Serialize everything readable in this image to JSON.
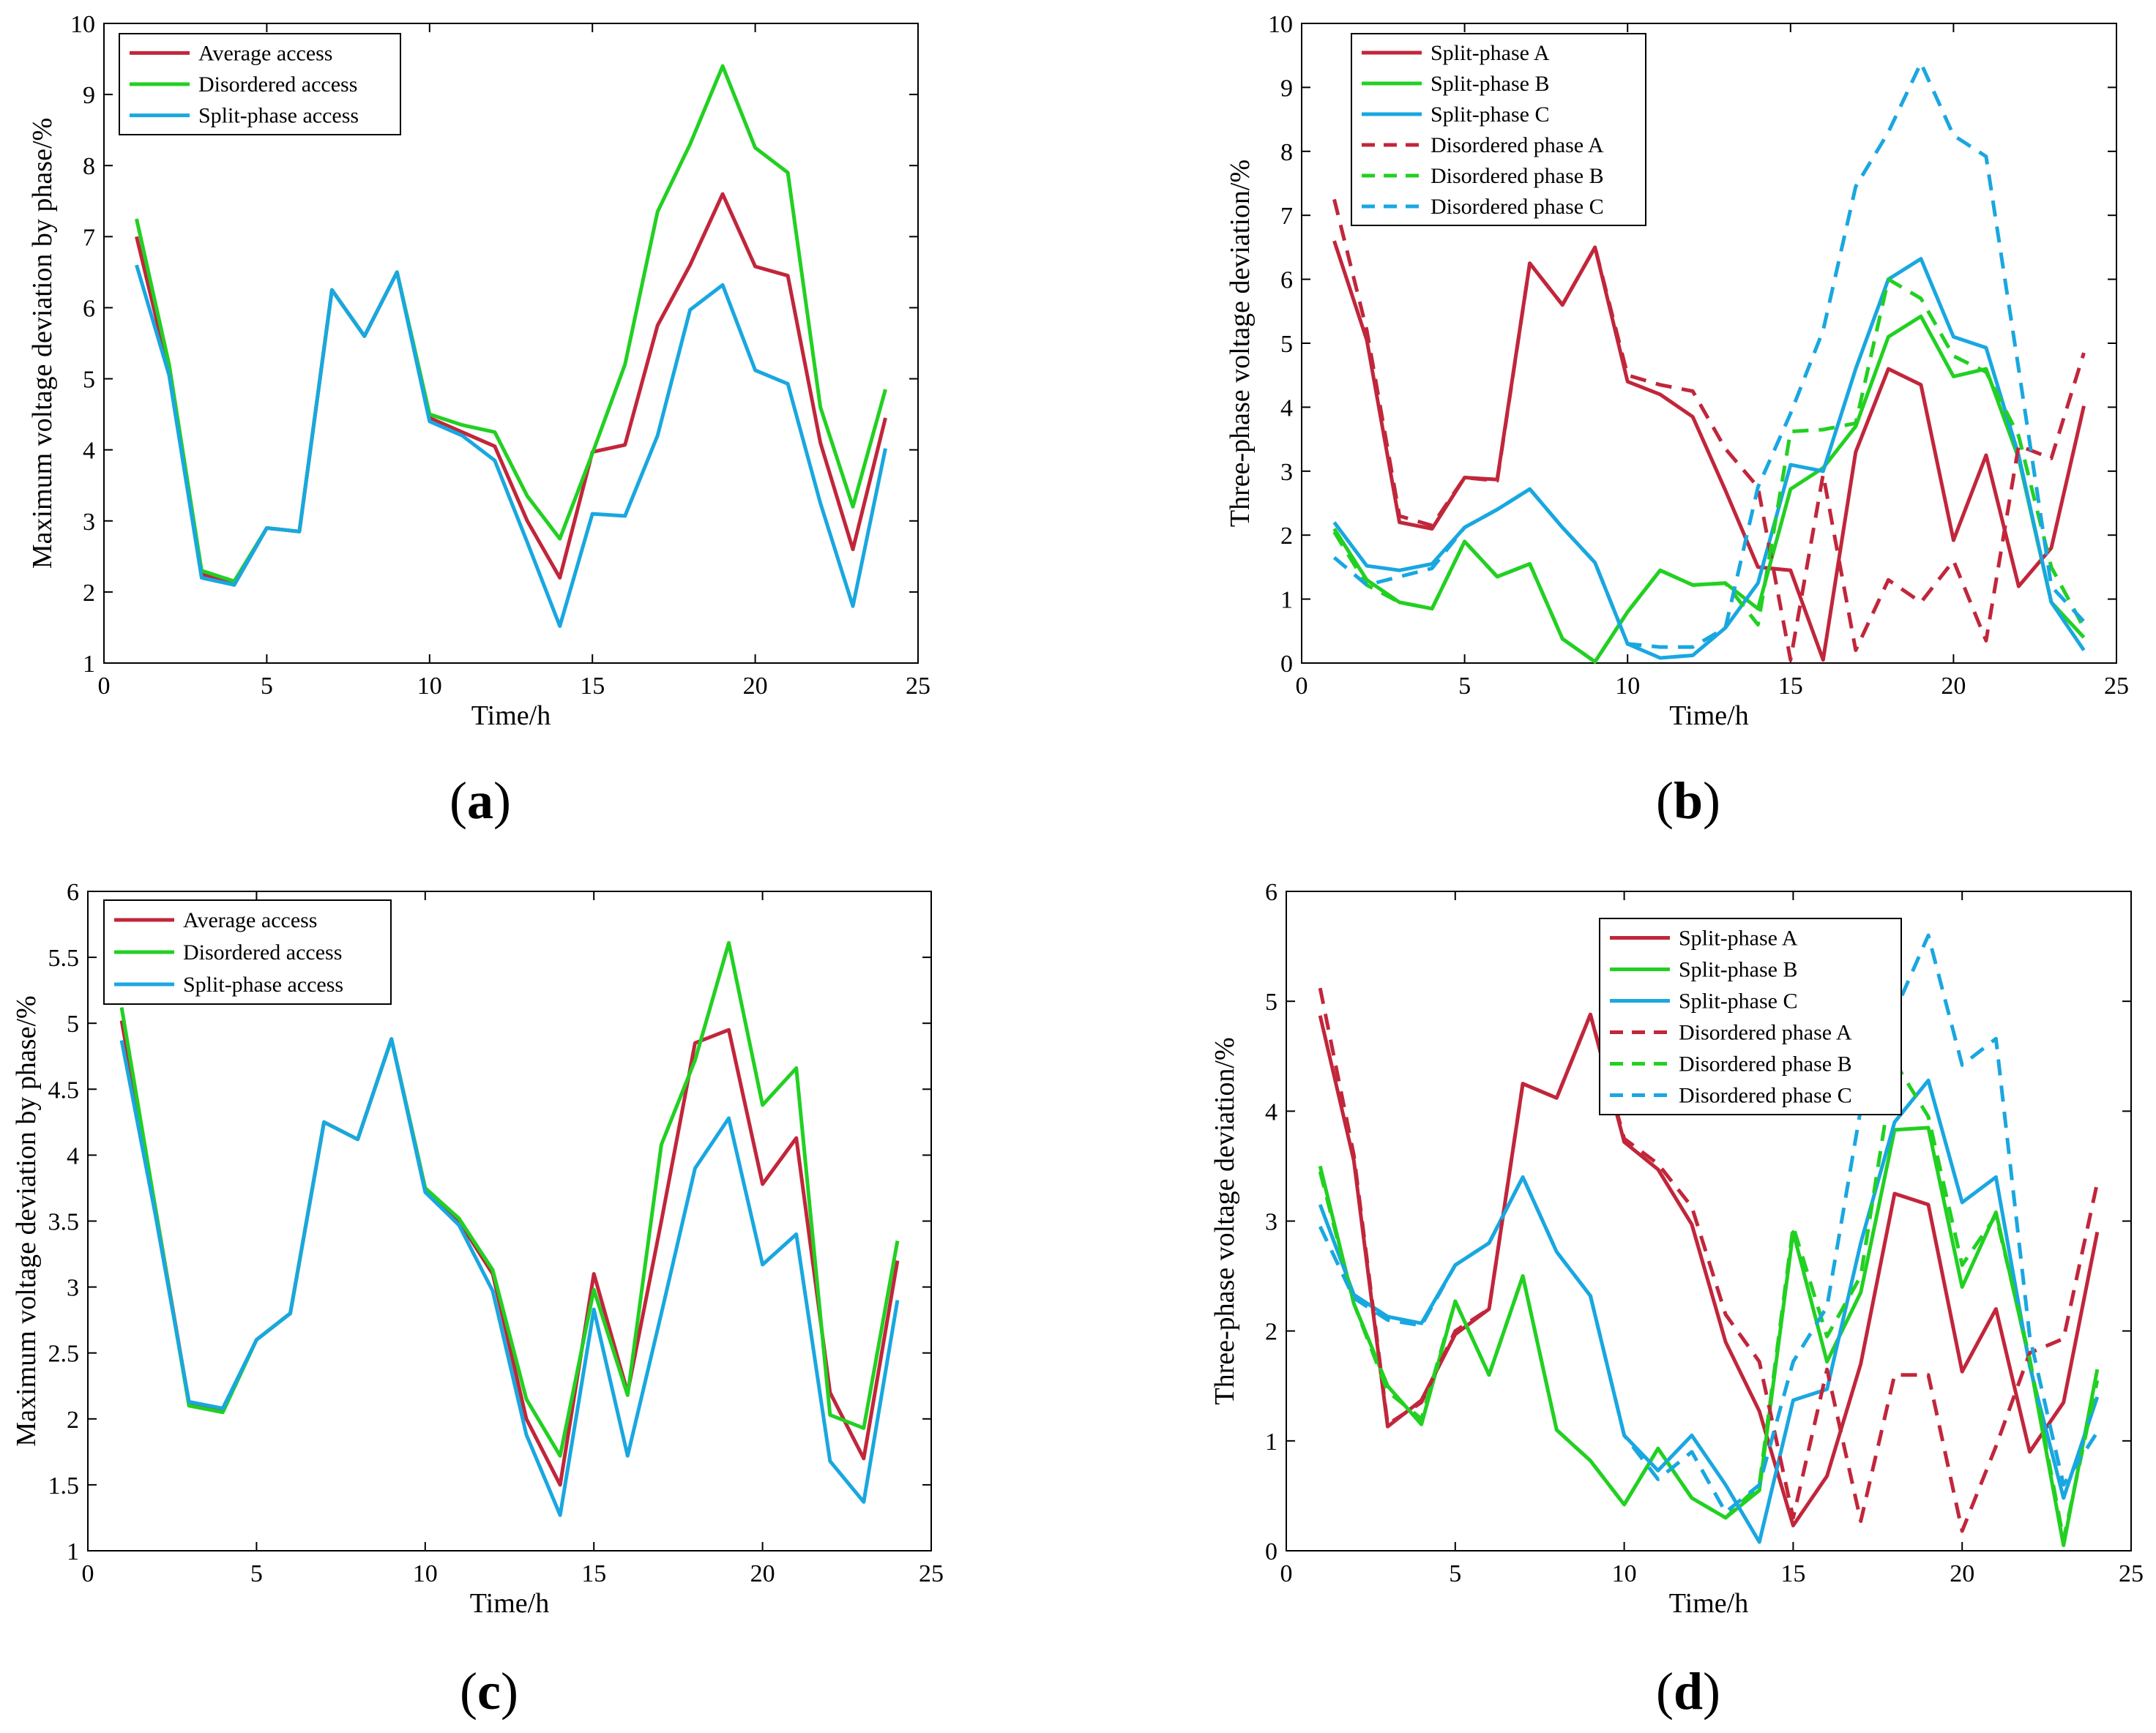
{
  "colors": {
    "red": "#c1263b",
    "green": "#22d022",
    "blue": "#19a7e0"
  },
  "chart_data": [
    {
      "panel": "a",
      "type": "line",
      "label": {
        "open": "(",
        "letter": "a",
        "close": ")"
      },
      "xlabel": "Time/h",
      "ylabel": "Maximum voltage deviation by phase/%",
      "xlim": [
        0,
        25
      ],
      "ylim": [
        1,
        10
      ],
      "xticks": [
        0,
        5,
        10,
        15,
        20,
        25
      ],
      "yticks": [
        1,
        2,
        3,
        4,
        5,
        6,
        7,
        8,
        9,
        10
      ],
      "legend_position": "top-left",
      "x": [
        1,
        2,
        3,
        4,
        5,
        6,
        7,
        8,
        9,
        10,
        11,
        12,
        13,
        14,
        15,
        16,
        17,
        18,
        19,
        20,
        21,
        22,
        23,
        24
      ],
      "series": [
        {
          "name": "Average access",
          "color": "red",
          "dash": "solid",
          "values": [
            7.0,
            5.1,
            2.25,
            2.1,
            2.9,
            2.85,
            6.25,
            5.6,
            6.5,
            4.45,
            4.25,
            4.05,
            3.0,
            2.2,
            3.97,
            4.07,
            5.75,
            6.6,
            7.6,
            6.58,
            6.45,
            4.1,
            2.6,
            4.45
          ]
        },
        {
          "name": "Disordered access",
          "color": "green",
          "dash": "solid",
          "values": [
            7.25,
            5.2,
            2.3,
            2.15,
            2.9,
            2.85,
            6.25,
            5.6,
            6.5,
            4.5,
            4.35,
            4.25,
            3.35,
            2.75,
            3.95,
            5.2,
            7.35,
            8.3,
            9.4,
            8.25,
            7.9,
            4.6,
            3.2,
            4.85
          ]
        },
        {
          "name": "Split-phase access",
          "color": "blue",
          "dash": "solid",
          "values": [
            6.6,
            5.05,
            2.2,
            2.1,
            2.9,
            2.85,
            6.25,
            5.6,
            6.5,
            4.4,
            4.2,
            3.85,
            2.7,
            1.52,
            3.1,
            3.07,
            4.2,
            5.97,
            6.32,
            5.12,
            4.93,
            3.25,
            1.8,
            4.02
          ]
        }
      ]
    },
    {
      "panel": "b",
      "type": "line",
      "label": {
        "open": "(",
        "letter": "b",
        "close": ")"
      },
      "xlabel": "Time/h",
      "ylabel": "Three-phase voltage deviation/%",
      "xlim": [
        0,
        25
      ],
      "ylim": [
        0,
        10
      ],
      "xticks": [
        0,
        5,
        10,
        15,
        20,
        25
      ],
      "yticks": [
        0,
        1,
        2,
        3,
        4,
        5,
        6,
        7,
        8,
        9,
        10
      ],
      "legend_position": "top-left",
      "x": [
        1,
        2,
        3,
        4,
        5,
        6,
        7,
        8,
        9,
        10,
        11,
        12,
        13,
        14,
        15,
        16,
        17,
        18,
        19,
        20,
        21,
        22,
        23,
        24
      ],
      "series": [
        {
          "name": "Split-phase A",
          "color": "red",
          "dash": "solid",
          "values": [
            6.6,
            5.05,
            2.2,
            2.1,
            2.9,
            2.87,
            6.25,
            5.6,
            6.5,
            4.4,
            4.2,
            3.85,
            2.7,
            1.5,
            1.45,
            0.05,
            3.3,
            4.6,
            4.35,
            1.92,
            3.25,
            1.2,
            1.8,
            4.02
          ]
        },
        {
          "name": "Split-phase B",
          "color": "green",
          "dash": "solid",
          "values": [
            2.1,
            1.3,
            0.95,
            0.85,
            1.9,
            1.35,
            1.55,
            0.38,
            0.02,
            0.8,
            1.45,
            1.22,
            1.25,
            0.85,
            2.72,
            3.05,
            3.7,
            5.1,
            5.42,
            4.48,
            4.6,
            3.2,
            0.95,
            0.4
          ]
        },
        {
          "name": "Split-phase C",
          "color": "blue",
          "dash": "solid",
          "values": [
            2.2,
            1.52,
            1.45,
            1.55,
            2.12,
            2.4,
            2.72,
            2.12,
            1.57,
            0.3,
            0.08,
            0.12,
            0.55,
            1.25,
            3.1,
            3.0,
            4.6,
            6.0,
            6.32,
            5.1,
            4.93,
            3.25,
            0.95,
            0.2
          ]
        },
        {
          "name": "Disordered phase A",
          "color": "red",
          "dash": "dashed",
          "values": [
            7.25,
            5.2,
            2.3,
            2.15,
            2.9,
            2.85,
            6.25,
            5.6,
            6.5,
            4.5,
            4.35,
            4.25,
            3.35,
            2.75,
            0.05,
            2.95,
            0.2,
            1.3,
            0.95,
            1.6,
            0.35,
            3.4,
            3.2,
            4.85
          ]
        },
        {
          "name": "Disordered phase B",
          "color": "green",
          "dash": "dashed",
          "values": [
            2.05,
            1.22,
            0.95,
            0.85,
            1.9,
            1.35,
            1.55,
            0.38,
            0.02,
            0.8,
            1.45,
            1.22,
            1.25,
            0.6,
            3.62,
            3.65,
            3.75,
            6.0,
            5.7,
            4.8,
            4.55,
            3.55,
            1.5,
            0.55
          ]
        },
        {
          "name": "Disordered phase C",
          "color": "blue",
          "dash": "dashed",
          "values": [
            1.65,
            1.22,
            1.35,
            1.48,
            2.12,
            2.4,
            2.72,
            2.12,
            1.57,
            0.3,
            0.25,
            0.25,
            0.55,
            2.75,
            3.9,
            5.2,
            7.45,
            8.3,
            9.38,
            8.25,
            7.92,
            4.6,
            1.2,
            0.65
          ]
        }
      ]
    },
    {
      "panel": "c",
      "type": "line",
      "label": {
        "open": "(",
        "letter": "c",
        "close": ")"
      },
      "xlabel": "Time/h",
      "ylabel": "Maximum voltage deviation by phase/%",
      "xlim": [
        0,
        25
      ],
      "ylim": [
        1,
        6
      ],
      "xticks": [
        0,
        5,
        10,
        15,
        20,
        25
      ],
      "yticks": [
        1,
        1.5,
        2,
        2.5,
        3,
        3.5,
        4,
        4.5,
        5,
        5.5,
        6
      ],
      "legend_position": "top-left",
      "x": [
        1,
        2,
        3,
        4,
        5,
        6,
        7,
        8,
        9,
        10,
        11,
        12,
        13,
        14,
        15,
        16,
        17,
        18,
        19,
        20,
        21,
        22,
        23,
        24
      ],
      "series": [
        {
          "name": "Average access",
          "color": "red",
          "dash": "solid",
          "values": [
            5.02,
            3.6,
            2.12,
            2.07,
            2.6,
            2.8,
            4.25,
            4.12,
            4.88,
            3.75,
            3.5,
            3.1,
            2.0,
            1.5,
            3.1,
            2.2,
            3.5,
            4.85,
            4.95,
            3.78,
            4.13,
            2.2,
            1.7,
            3.2
          ]
        },
        {
          "name": "Disordered access",
          "color": "green",
          "dash": "solid",
          "values": [
            5.12,
            3.6,
            2.1,
            2.05,
            2.6,
            2.8,
            4.25,
            4.12,
            4.88,
            3.75,
            3.52,
            3.13,
            2.15,
            1.72,
            2.98,
            2.18,
            4.08,
            4.72,
            5.61,
            4.38,
            4.66,
            2.03,
            1.93,
            3.35
          ]
        },
        {
          "name": "Split-phase access",
          "color": "blue",
          "dash": "solid",
          "values": [
            4.87,
            3.55,
            2.13,
            2.08,
            2.6,
            2.8,
            4.25,
            4.12,
            4.88,
            3.72,
            3.47,
            2.97,
            1.88,
            1.27,
            2.83,
            1.72,
            2.8,
            3.9,
            4.28,
            3.17,
            3.4,
            1.68,
            1.37,
            2.9
          ]
        }
      ]
    },
    {
      "panel": "d",
      "type": "line",
      "label": {
        "open": "(",
        "letter": "d",
        "close": ")"
      },
      "xlabel": "Time/h",
      "ylabel": "Three-phase voltage deviation/%",
      "xlim": [
        0,
        25
      ],
      "ylim": [
        0,
        6
      ],
      "xticks": [
        0,
        5,
        10,
        15,
        20,
        25
      ],
      "yticks": [
        0,
        1,
        2,
        3,
        4,
        5,
        6
      ],
      "legend_position": "top-right",
      "x": [
        1,
        2,
        3,
        4,
        5,
        6,
        7,
        8,
        9,
        10,
        11,
        12,
        13,
        14,
        15,
        16,
        17,
        18,
        19,
        20,
        21,
        22,
        23,
        24
      ],
      "series": [
        {
          "name": "Split-phase A",
          "color": "red",
          "dash": "solid",
          "values": [
            4.87,
            3.55,
            1.13,
            1.37,
            1.97,
            2.2,
            4.25,
            4.12,
            4.88,
            3.72,
            3.47,
            2.97,
            1.9,
            1.27,
            0.23,
            0.68,
            1.7,
            3.25,
            3.15,
            1.63,
            2.2,
            0.9,
            1.35,
            2.9
          ]
        },
        {
          "name": "Split-phase B",
          "color": "green",
          "dash": "solid",
          "values": [
            3.5,
            2.25,
            1.5,
            1.15,
            2.27,
            1.6,
            2.5,
            1.1,
            0.82,
            0.42,
            0.93,
            0.48,
            0.3,
            0.55,
            2.9,
            1.72,
            2.35,
            3.83,
            3.85,
            2.4,
            3.08,
            1.72,
            0.05,
            1.65
          ]
        },
        {
          "name": "Split-phase C",
          "color": "blue",
          "dash": "solid",
          "values": [
            3.15,
            2.33,
            2.13,
            2.07,
            2.6,
            2.8,
            3.4,
            2.72,
            2.32,
            1.05,
            0.73,
            1.05,
            0.6,
            0.08,
            1.37,
            1.47,
            2.8,
            3.9,
            4.28,
            3.17,
            3.4,
            1.68,
            0.48,
            1.4
          ]
        },
        {
          "name": "Disordered phase A",
          "color": "red",
          "dash": "dashed",
          "values": [
            5.12,
            3.6,
            1.15,
            1.35,
            2.0,
            2.2,
            4.25,
            4.12,
            4.88,
            3.75,
            3.52,
            3.13,
            2.15,
            1.72,
            0.3,
            1.65,
            0.27,
            1.6,
            1.6,
            0.18,
            0.95,
            1.8,
            1.93,
            3.35
          ]
        },
        {
          "name": "Disordered phase B",
          "color": "green",
          "dash": "dashed",
          "values": [
            3.45,
            2.25,
            1.45,
            1.2,
            2.27,
            1.6,
            2.5,
            1.1,
            0.82,
            0.42,
            0.93,
            0.48,
            0.3,
            0.6,
            2.95,
            1.95,
            2.5,
            4.45,
            3.95,
            2.6,
            3.05,
            1.75,
            0.1,
            1.55
          ]
        },
        {
          "name": "Disordered phase C",
          "color": "blue",
          "dash": "dashed",
          "values": [
            2.95,
            2.3,
            2.1,
            2.05,
            2.6,
            2.8,
            3.4,
            2.72,
            2.32,
            1.05,
            0.65,
            0.9,
            0.35,
            0.6,
            1.72,
            2.22,
            4.02,
            4.9,
            5.6,
            4.42,
            4.66,
            1.95,
            0.6,
            1.08
          ]
        }
      ]
    }
  ]
}
